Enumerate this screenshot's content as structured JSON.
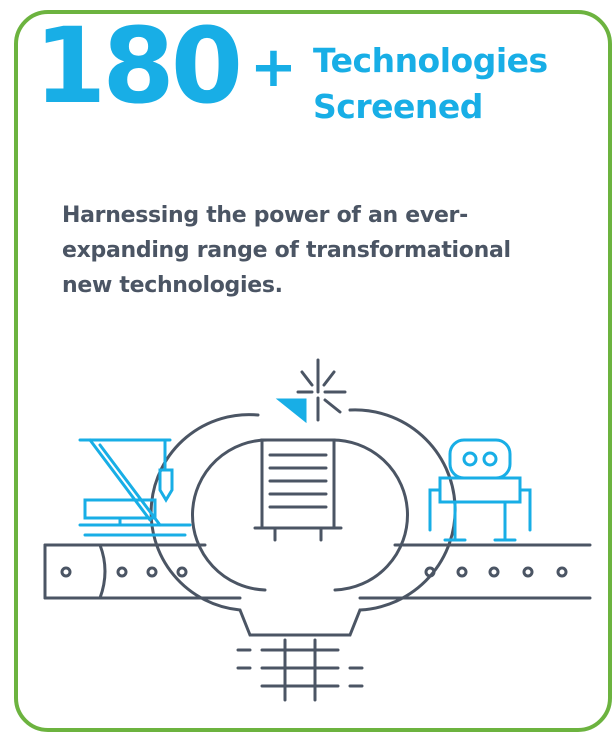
{
  "headline": {
    "number": "180",
    "plus": "+",
    "line1": "Technologies",
    "line2": "Screened"
  },
  "body": {
    "lines": [
      "Harnessing the power of an ever-",
      "expanding range of transformational",
      "new technologies."
    ]
  }
}
